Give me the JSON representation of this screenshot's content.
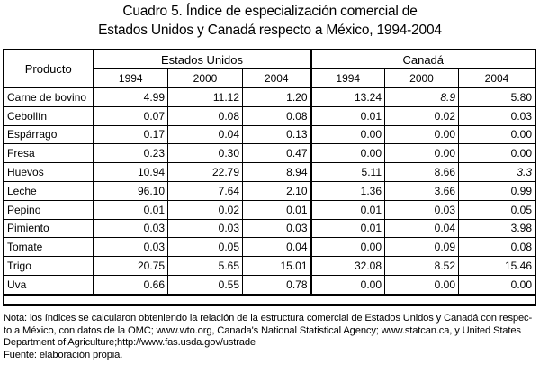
{
  "title": {
    "line1": "Cuadro 5. Índice de especialización comercial de",
    "line2": "Estados Unidos y Canadá respecto a México, 1994-2004"
  },
  "table": {
    "product_header": "Producto",
    "group_headers": [
      "Estados Unidos",
      "Canadá"
    ],
    "years": [
      "1994",
      "2000",
      "2004",
      "1994",
      "2000",
      "2004"
    ],
    "rows": [
      {
        "name": "Carne de bovino",
        "values": [
          "4.99",
          "11.12",
          "1.20",
          "13.24",
          "8.9",
          "5.80"
        ]
      },
      {
        "name": "Cebollín",
        "values": [
          "0.07",
          "0.08",
          "0.08",
          "0.01",
          "0.02",
          "0.03"
        ]
      },
      {
        "name": "Espárrago",
        "values": [
          "0.17",
          "0.04",
          "0.13",
          "0.00",
          "0.00",
          "0.00"
        ]
      },
      {
        "name": "Fresa",
        "values": [
          "0.23",
          "0.30",
          "0.47",
          "0.00",
          "0.00",
          "0.00"
        ]
      },
      {
        "name": "Huevos",
        "values": [
          "10.94",
          "22.79",
          "8.94",
          "5.11",
          "8.66",
          "3.3"
        ]
      },
      {
        "name": "Leche",
        "values": [
          "96.10",
          "7.64",
          "2.10",
          "1.36",
          "3.66",
          "0.99"
        ]
      },
      {
        "name": "Pepino",
        "values": [
          "0.01",
          "0.02",
          "0.01",
          "0.01",
          "0.03",
          "0.05"
        ]
      },
      {
        "name": "Pimiento",
        "values": [
          "0.03",
          "0.03",
          "0.03",
          "0.01",
          "0.04",
          "3.98"
        ]
      },
      {
        "name": "Tomate",
        "values": [
          "0.03",
          "0.05",
          "0.04",
          "0.00",
          "0.09",
          "0.08"
        ]
      },
      {
        "name": "Trigo",
        "values": [
          "20.75",
          "5.65",
          "15.01",
          "32.08",
          "8.52",
          "15.46"
        ]
      },
      {
        "name": "Uva",
        "values": [
          "0.66",
          "0.55",
          "0.78",
          "0.00",
          "0.00",
          "0.00"
        ]
      }
    ],
    "italic_cells": [
      [
        0,
        4
      ],
      [
        4,
        5
      ]
    ]
  },
  "note": {
    "line1": "Nota: los índices se calcularon obteniendo la  relación de la estructura comercial de Estados Unidos y Canadá con respec-",
    "line2": "to a México, con datos de la OMC; www.wto.org, Canada's National Statistical Agency; www.statcan.ca, y United States",
    "line3": "Department of Agriculture;http://www.fas.usda.gov/ustrade",
    "source": "Fuente: elaboración propia."
  }
}
